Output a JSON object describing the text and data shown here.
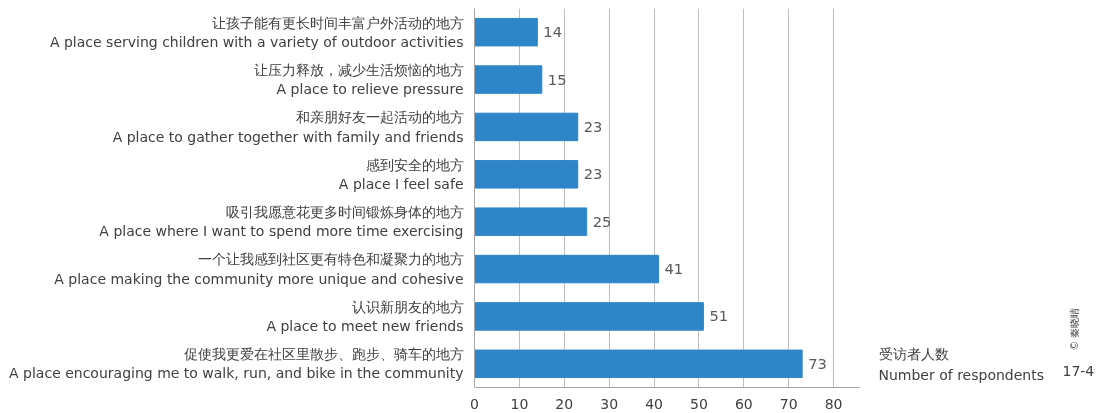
{
  "chart_data": {
    "type": "bar",
    "orientation": "horizontal",
    "categories": [
      "让孩子能有更长时间丰富户外活动的地方\nA place serving children with a variety of outdoor activities",
      "让压力释放，减少生活烦恼的地方\nA place to relieve pressure",
      "和亲朋好友一起活动的地方\nA place to gather together with family and friends",
      "感到安全的地方\nA place I feel safe",
      "吸引我愿意花更多时间锻炼身体的地方\nA place where I want to spend more time exercising",
      "一个让我感到社区更有特色和凝聚力的地方\nA place making the community more unique and cohesive",
      "认识新朋友的地方\nA place to meet new friends",
      "促使我更爱在社区里散步、跑步、骑车的地方\nA place encouraging me to walk, run, and bike in the community"
    ],
    "values": [
      14,
      15,
      23,
      23,
      25,
      41,
      51,
      73
    ],
    "color": "#2e86c8",
    "data_labels": true,
    "xlabel": "受访者人数\nNumber of respondents",
    "xlim": [
      0,
      86
    ],
    "xticks": [
      0,
      10,
      20,
      30,
      40,
      50,
      60,
      70,
      80
    ],
    "grid": "x",
    "annotations": [
      "17-4",
      "© 秦晓晴"
    ]
  }
}
